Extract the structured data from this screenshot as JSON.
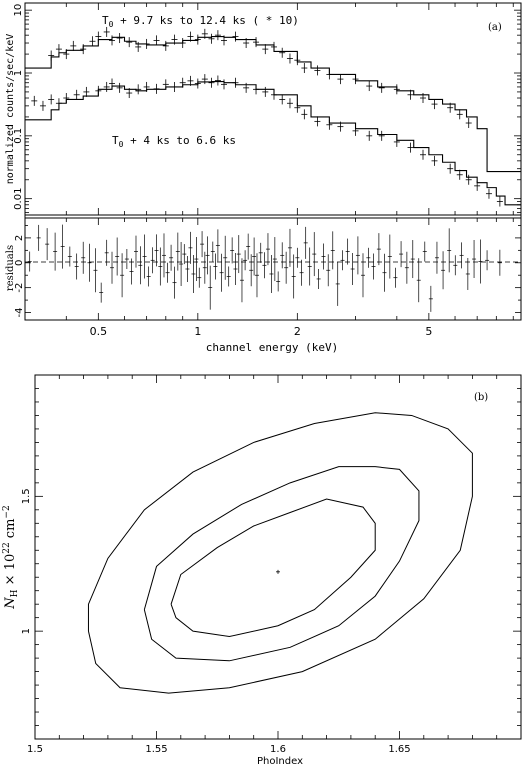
{
  "chart_data": [
    {
      "panel": "(a)",
      "type": "line",
      "xlabel": "channel energy (keV)",
      "ylabel_top": "normalized counts/sec/keV",
      "ylabel_bottom": "residuals",
      "xscale": "log",
      "xlim": [
        0.3,
        9.5
      ],
      "ylim_top": [
        0.0055,
        13
      ],
      "yscale_top": "log",
      "ylim_bottom": [
        -4.6,
        3.6
      ],
      "x_ticks": [
        "0.5",
        "1",
        "2",
        "5"
      ],
      "y_ticks_top": [
        "10",
        "1",
        "0.1",
        "0.01"
      ],
      "y_ticks_bottom": [
        "2",
        "0",
        "-2",
        "-4"
      ],
      "annotation_upper": "T0 + 9.7 ks to 12.4 ks ( * 10)",
      "annotation_lower": "T0 + 4 ks to 6.6 ks",
      "series": [
        {
          "x": [
            0.3,
            0.34,
            0.36,
            0.38,
            0.4,
            0.45,
            0.5,
            0.55,
            0.6,
            0.65,
            0.7,
            0.8,
            0.9,
            1.0,
            1.1,
            1.2,
            1.3,
            1.5,
            1.7,
            2.0,
            2.2,
            2.5,
            3.0,
            3.5,
            4.0,
            4.5,
            5.0,
            5.5,
            6.0,
            6.5,
            7.0,
            7.5,
            9.5
          ],
          "y": [
            1.2,
            1.2,
            1.8,
            2.1,
            2.3,
            2.7,
            3.4,
            3.7,
            3.2,
            2.9,
            2.8,
            3.0,
            3.3,
            3.7,
            3.8,
            3.7,
            3.4,
            2.8,
            2.2,
            1.5,
            1.2,
            0.95,
            0.75,
            0.6,
            0.52,
            0.45,
            0.38,
            0.32,
            0.26,
            0.2,
            0.13,
            0.027,
            0.027
          ]
        },
        {
          "x": [
            0.3,
            0.34,
            0.36,
            0.38,
            0.4,
            0.45,
            0.5,
            0.55,
            0.6,
            0.65,
            0.7,
            0.8,
            0.9,
            1.0,
            1.1,
            1.2,
            1.3,
            1.5,
            1.7,
            2.0,
            2.2,
            2.5,
            3.0,
            3.5,
            4.0,
            4.5,
            5.0,
            5.5,
            6.0,
            6.5,
            7.0,
            7.5,
            8.0,
            8.5,
            9.5
          ],
          "y": [
            0.18,
            0.18,
            0.26,
            0.33,
            0.38,
            0.43,
            0.55,
            0.62,
            0.55,
            0.52,
            0.55,
            0.6,
            0.65,
            0.72,
            0.73,
            0.7,
            0.65,
            0.55,
            0.45,
            0.3,
            0.2,
            0.16,
            0.13,
            0.105,
            0.085,
            0.065,
            0.05,
            0.038,
            0.028,
            0.022,
            0.018,
            0.015,
            0.011,
            0.008,
            0.008
          ]
        }
      ],
      "points_upper": [
        [
          0.36,
          1.9
        ],
        [
          0.38,
          2.4
        ],
        [
          0.4,
          2.0
        ],
        [
          0.42,
          2.7
        ],
        [
          0.45,
          2.4
        ],
        [
          0.48,
          3.2
        ],
        [
          0.5,
          3.8
        ],
        [
          0.53,
          4.5
        ],
        [
          0.55,
          3.3
        ],
        [
          0.58,
          3.6
        ],
        [
          0.62,
          3.1
        ],
        [
          0.66,
          2.6
        ],
        [
          0.7,
          2.9
        ],
        [
          0.75,
          3.3
        ],
        [
          0.8,
          2.7
        ],
        [
          0.85,
          3.4
        ],
        [
          0.9,
          3.0
        ],
        [
          0.95,
          3.8
        ],
        [
          1.0,
          3.4
        ],
        [
          1.05,
          4.2
        ],
        [
          1.1,
          3.5
        ],
        [
          1.15,
          4.0
        ],
        [
          1.2,
          3.3
        ],
        [
          1.3,
          3.8
        ],
        [
          1.4,
          3.0
        ],
        [
          1.5,
          3.1
        ],
        [
          1.6,
          2.4
        ],
        [
          1.7,
          2.6
        ],
        [
          1.8,
          2.1
        ],
        [
          1.9,
          1.7
        ],
        [
          2.0,
          1.6
        ],
        [
          2.1,
          1.2
        ],
        [
          2.3,
          1.1
        ],
        [
          2.5,
          0.95
        ],
        [
          2.7,
          0.8
        ],
        [
          3.0,
          0.8
        ],
        [
          3.3,
          0.62
        ],
        [
          3.6,
          0.58
        ],
        [
          4.0,
          0.55
        ],
        [
          4.4,
          0.45
        ],
        [
          4.8,
          0.4
        ],
        [
          5.2,
          0.32
        ],
        [
          5.8,
          0.28
        ],
        [
          6.2,
          0.22
        ],
        [
          6.6,
          0.16
        ]
      ],
      "points_lower": [
        [
          0.32,
          0.36
        ],
        [
          0.34,
          0.3
        ],
        [
          0.36,
          0.38
        ],
        [
          0.38,
          0.33
        ],
        [
          0.4,
          0.4
        ],
        [
          0.43,
          0.45
        ],
        [
          0.46,
          0.5
        ],
        [
          0.5,
          0.52
        ],
        [
          0.53,
          0.6
        ],
        [
          0.55,
          0.68
        ],
        [
          0.58,
          0.58
        ],
        [
          0.62,
          0.48
        ],
        [
          0.66,
          0.55
        ],
        [
          0.7,
          0.6
        ],
        [
          0.75,
          0.56
        ],
        [
          0.8,
          0.66
        ],
        [
          0.85,
          0.6
        ],
        [
          0.9,
          0.7
        ],
        [
          0.95,
          0.75
        ],
        [
          1.0,
          0.68
        ],
        [
          1.05,
          0.8
        ],
        [
          1.1,
          0.7
        ],
        [
          1.15,
          0.76
        ],
        [
          1.2,
          0.66
        ],
        [
          1.3,
          0.7
        ],
        [
          1.4,
          0.58
        ],
        [
          1.5,
          0.55
        ],
        [
          1.6,
          0.5
        ],
        [
          1.7,
          0.45
        ],
        [
          1.8,
          0.38
        ],
        [
          1.9,
          0.33
        ],
        [
          2.0,
          0.28
        ],
        [
          2.1,
          0.22
        ],
        [
          2.3,
          0.17
        ],
        [
          2.5,
          0.15
        ],
        [
          2.7,
          0.14
        ],
        [
          3.0,
          0.12
        ],
        [
          3.3,
          0.1
        ],
        [
          3.6,
          0.1
        ],
        [
          4.0,
          0.08
        ],
        [
          4.4,
          0.065
        ],
        [
          4.8,
          0.05
        ],
        [
          5.2,
          0.04
        ],
        [
          5.8,
          0.03
        ],
        [
          6.2,
          0.024
        ],
        [
          6.6,
          0.02
        ],
        [
          7.0,
          0.016
        ],
        [
          7.6,
          0.012
        ],
        [
          8.2,
          0.009
        ]
      ],
      "residuals": [
        [
          0.31,
          0.1
        ],
        [
          0.33,
          2.0
        ],
        [
          0.35,
          1.5
        ],
        [
          0.37,
          0.9
        ],
        [
          0.39,
          1.3
        ],
        [
          0.41,
          0.5
        ],
        [
          0.43,
          -0.3
        ],
        [
          0.45,
          0.4
        ],
        [
          0.47,
          0.0
        ],
        [
          0.49,
          -0.6
        ],
        [
          0.51,
          -2.4
        ],
        [
          0.53,
          0.8
        ],
        [
          0.55,
          -0.4
        ],
        [
          0.57,
          0.5
        ],
        [
          0.59,
          -1.0
        ],
        [
          0.61,
          0.3
        ],
        [
          0.63,
          -0.7
        ],
        [
          0.65,
          0.9
        ],
        [
          0.67,
          -0.2
        ],
        [
          0.69,
          0.5
        ],
        [
          0.71,
          -1.1
        ],
        [
          0.73,
          0.2
        ],
        [
          0.75,
          1.0
        ],
        [
          0.77,
          -0.3
        ],
        [
          0.79,
          0.6
        ],
        [
          0.81,
          -0.8
        ],
        [
          0.83,
          0.4
        ],
        [
          0.85,
          -1.6
        ],
        [
          0.87,
          0.9
        ],
        [
          0.89,
          -0.1
        ],
        [
          0.91,
          0.7
        ],
        [
          0.93,
          -0.5
        ],
        [
          0.95,
          1.2
        ],
        [
          0.97,
          -0.9
        ],
        [
          0.99,
          0.3
        ],
        [
          1.01,
          -1.2
        ],
        [
          1.03,
          1.5
        ],
        [
          1.05,
          -0.4
        ],
        [
          1.07,
          0.6
        ],
        [
          1.09,
          -2.0
        ],
        [
          1.11,
          0.9
        ],
        [
          1.13,
          -0.3
        ],
        [
          1.15,
          1.4
        ],
        [
          1.18,
          -0.8
        ],
        [
          1.21,
          0.4
        ],
        [
          1.24,
          -1.1
        ],
        [
          1.27,
          1.0
        ],
        [
          1.3,
          -0.5
        ],
        [
          1.33,
          0.7
        ],
        [
          1.36,
          -1.4
        ],
        [
          1.39,
          0.2
        ],
        [
          1.42,
          1.3
        ],
        [
          1.45,
          -0.6
        ],
        [
          1.48,
          0.5
        ],
        [
          1.51,
          -1.0
        ],
        [
          1.55,
          0.8
        ],
        [
          1.59,
          -0.2
        ],
        [
          1.63,
          1.1
        ],
        [
          1.67,
          -0.9
        ],
        [
          1.71,
          0.3
        ],
        [
          1.75,
          -1.5
        ],
        [
          1.8,
          0.6
        ],
        [
          1.85,
          -0.4
        ],
        [
          1.9,
          1.2
        ],
        [
          1.95,
          -1.1
        ],
        [
          2.0,
          0.4
        ],
        [
          2.06,
          -0.8
        ],
        [
          2.12,
          1.6
        ],
        [
          2.18,
          -0.3
        ],
        [
          2.25,
          0.7
        ],
        [
          2.32,
          -1.3
        ],
        [
          2.4,
          0.5
        ],
        [
          2.48,
          -0.6
        ],
        [
          2.56,
          1.0
        ],
        [
          2.65,
          -1.7
        ],
        [
          2.74,
          0.2
        ],
        [
          2.84,
          0.9
        ],
        [
          2.94,
          -0.5
        ],
        [
          3.05,
          0.6
        ],
        [
          3.16,
          -1.0
        ],
        [
          3.28,
          0.4
        ],
        [
          3.4,
          -0.3
        ],
        [
          3.53,
          1.1
        ],
        [
          3.67,
          -0.8
        ],
        [
          3.81,
          0.5
        ],
        [
          3.96,
          -1.2
        ],
        [
          4.12,
          0.7
        ],
        [
          4.29,
          -0.4
        ],
        [
          4.47,
          0.3
        ],
        [
          4.66,
          -1.4
        ],
        [
          4.86,
          0.9
        ],
        [
          5.07,
          -2.9
        ],
        [
          5.29,
          0.4
        ],
        [
          5.52,
          -0.6
        ],
        [
          5.76,
          1.0
        ],
        [
          6.01,
          -0.2
        ],
        [
          6.28,
          0.6
        ],
        [
          6.56,
          -0.9
        ],
        [
          6.85,
          0.3
        ],
        [
          7.16,
          0.1
        ],
        [
          7.5,
          0.2
        ],
        [
          8.2,
          0.0
        ]
      ]
    },
    {
      "panel": "(b)",
      "type": "line",
      "xlabel": "PhoIndex",
      "ylabel": "N_H × 10^22 cm^-2",
      "xlim": [
        1.5,
        1.7
      ],
      "ylim": [
        0.6,
        1.95
      ],
      "x_ticks": [
        "1.5",
        "1.55",
        "1.6",
        "1.65"
      ],
      "y_ticks": [
        "1",
        "1.5"
      ],
      "best_fit": [
        1.6,
        1.22
      ],
      "contours": [
        [
          [
            1.556,
            1.1
          ],
          [
            1.558,
            1.05
          ],
          [
            1.565,
            1.0
          ],
          [
            1.58,
            0.98
          ],
          [
            1.6,
            1.02
          ],
          [
            1.615,
            1.08
          ],
          [
            1.63,
            1.2
          ],
          [
            1.64,
            1.3
          ],
          [
            1.64,
            1.4
          ],
          [
            1.635,
            1.46
          ],
          [
            1.62,
            1.49
          ],
          [
            1.605,
            1.44
          ],
          [
            1.59,
            1.39
          ],
          [
            1.575,
            1.31
          ],
          [
            1.56,
            1.21
          ],
          [
            1.556,
            1.1
          ]
        ],
        [
          [
            1.545,
            1.08
          ],
          [
            1.548,
            0.97
          ],
          [
            1.558,
            0.9
          ],
          [
            1.58,
            0.89
          ],
          [
            1.605,
            0.94
          ],
          [
            1.625,
            1.02
          ],
          [
            1.64,
            1.13
          ],
          [
            1.65,
            1.26
          ],
          [
            1.658,
            1.41
          ],
          [
            1.658,
            1.52
          ],
          [
            1.65,
            1.6
          ],
          [
            1.64,
            1.61
          ],
          [
            1.625,
            1.61
          ],
          [
            1.605,
            1.55
          ],
          [
            1.585,
            1.47
          ],
          [
            1.565,
            1.36
          ],
          [
            1.55,
            1.24
          ],
          [
            1.545,
            1.08
          ]
        ],
        [
          [
            1.522,
            1.0
          ],
          [
            1.525,
            0.88
          ],
          [
            1.535,
            0.79
          ],
          [
            1.555,
            0.77
          ],
          [
            1.58,
            0.79
          ],
          [
            1.61,
            0.85
          ],
          [
            1.64,
            0.97
          ],
          [
            1.66,
            1.12
          ],
          [
            1.675,
            1.3
          ],
          [
            1.68,
            1.5
          ],
          [
            1.68,
            1.66
          ],
          [
            1.67,
            1.75
          ],
          [
            1.655,
            1.8
          ],
          [
            1.64,
            1.81
          ],
          [
            1.615,
            1.77
          ],
          [
            1.59,
            1.7
          ],
          [
            1.565,
            1.59
          ],
          [
            1.545,
            1.45
          ],
          [
            1.53,
            1.27
          ],
          [
            1.522,
            1.1
          ],
          [
            1.522,
            1.0
          ]
        ]
      ]
    }
  ]
}
